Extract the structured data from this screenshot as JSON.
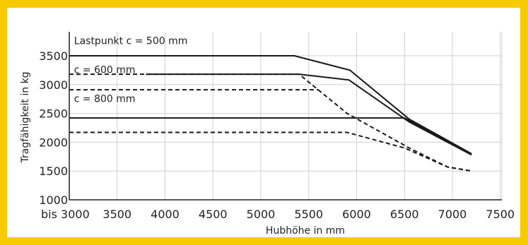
{
  "chart_data": {
    "type": "line",
    "xlabel": "Hubhöhe in mm",
    "ylabel": "Tragfähigkeit in kg",
    "xlim": [
      3000,
      7500
    ],
    "ylim": [
      1000,
      3500
    ],
    "x_ticks": [
      {
        "value": 3000,
        "label": "bis 3000"
      },
      {
        "value": 3500,
        "label": "3500"
      },
      {
        "value": 4000,
        "label": "4000"
      },
      {
        "value": 4500,
        "label": "4500"
      },
      {
        "value": 5000,
        "label": "5000"
      },
      {
        "value": 5500,
        "label": "5500"
      },
      {
        "value": 6000,
        "label": "6000"
      },
      {
        "value": 6500,
        "label": "6500"
      },
      {
        "value": 7000,
        "label": "7000"
      },
      {
        "value": 7500,
        "label": "7500"
      }
    ],
    "y_ticks": [
      {
        "value": 1000,
        "label": "1000"
      },
      {
        "value": 1500,
        "label": "1500"
      },
      {
        "value": 2000,
        "label": "2000"
      },
      {
        "value": 2500,
        "label": "2500"
      },
      {
        "value": 3000,
        "label": "3000"
      },
      {
        "value": 3500,
        "label": "3500"
      }
    ],
    "grid": true,
    "annotations": [
      {
        "text": "Lastpunkt c = 500 mm",
        "x": 3050,
        "y": 3700
      },
      {
        "text": "c = 600 mm",
        "x": 3050,
        "y": 3200
      },
      {
        "text": "c = 800 mm",
        "x": 3050,
        "y": 2700
      }
    ],
    "series": [
      {
        "style": "solid",
        "points": [
          [
            3000,
            3500
          ],
          [
            5350,
            3500
          ],
          [
            5930,
            3250
          ],
          [
            6550,
            2400
          ],
          [
            7200,
            1800
          ]
        ]
      },
      {
        "style": "solid",
        "points": [
          [
            3800,
            3180
          ],
          [
            5400,
            3180
          ],
          [
            5920,
            3080
          ],
          [
            6550,
            2350
          ],
          [
            7200,
            1780
          ]
        ]
      },
      {
        "style": "solid",
        "points": [
          [
            3000,
            2420
          ],
          [
            6500,
            2420
          ],
          [
            7200,
            1790
          ]
        ]
      },
      {
        "style": "dashed",
        "points": [
          [
            3000,
            3180
          ],
          [
            5400,
            3180
          ],
          [
            5900,
            2500
          ],
          [
            6550,
            1900
          ],
          [
            6950,
            1570
          ],
          [
            7200,
            1500
          ]
        ]
      },
      {
        "style": "dashed",
        "points": [
          [
            3000,
            2910
          ],
          [
            5600,
            2910
          ]
        ]
      },
      {
        "style": "dashed",
        "points": [
          [
            3000,
            2170
          ],
          [
            5900,
            2170
          ],
          [
            6500,
            1900
          ],
          [
            6950,
            1570
          ],
          [
            7200,
            1500
          ]
        ]
      }
    ]
  }
}
